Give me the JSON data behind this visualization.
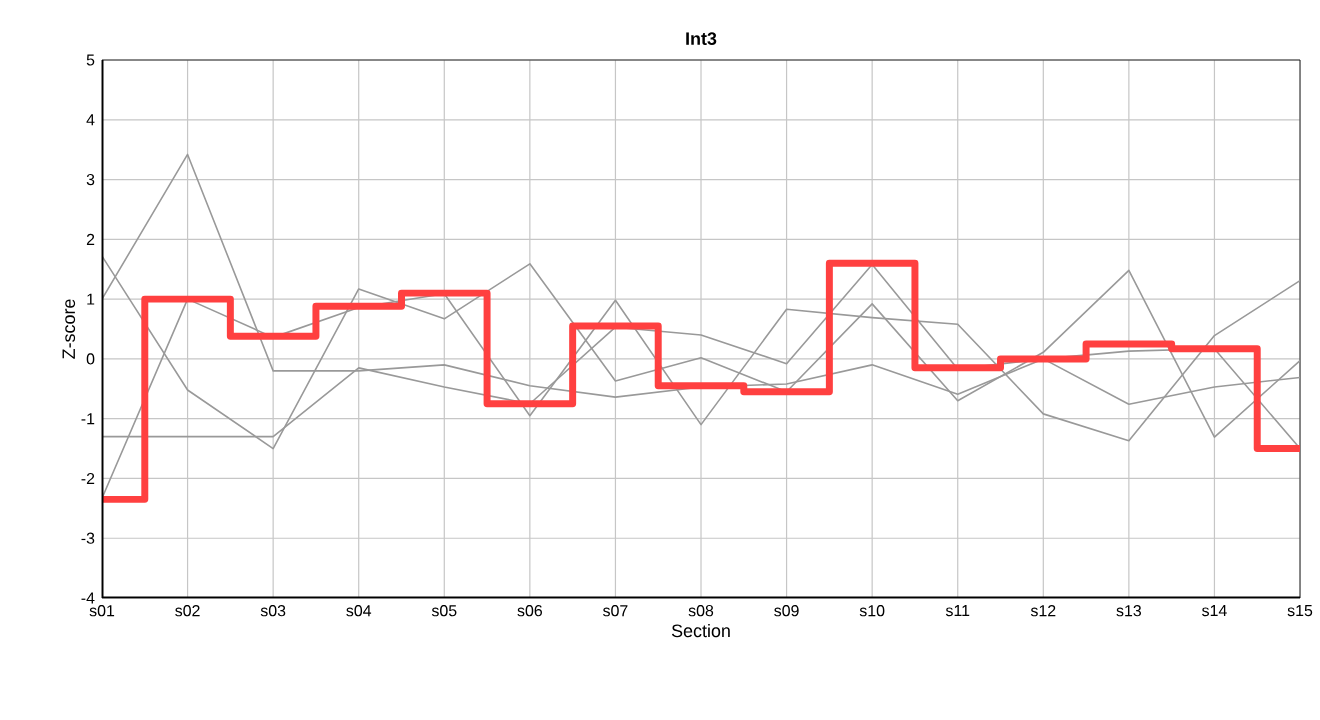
{
  "chart_data": {
    "type": "line",
    "title": "Int3",
    "xlabel": "Section",
    "ylabel": "Z-score",
    "categories": [
      "s01",
      "s02",
      "s03",
      "s04",
      "s05",
      "s06",
      "s07",
      "s08",
      "s09",
      "s10",
      "s11",
      "s12",
      "s13",
      "s14",
      "s15"
    ],
    "ylim": [
      -4,
      5
    ],
    "yticks": [
      -4,
      -3,
      -2,
      -1,
      0,
      1,
      2,
      3,
      4,
      5
    ],
    "grid": true,
    "series": [
      {
        "color": "#999999",
        "values": [
          1.0,
          3.42,
          -0.2,
          -0.2,
          -0.1,
          -0.45,
          -0.64,
          -0.47,
          -0.42,
          -0.1,
          -0.59,
          0.0,
          -0.76,
          -0.47,
          -0.31
        ]
      },
      {
        "color": "#999999",
        "values": [
          1.72,
          -0.52,
          -1.5,
          1.17,
          0.67,
          1.59,
          -0.37,
          0.02,
          -0.55,
          0.92,
          -0.7,
          0.11,
          1.48,
          -1.31,
          -0.03
        ]
      },
      {
        "color": "#999999",
        "values": [
          -2.33,
          1.0,
          0.36,
          0.86,
          1.09,
          -0.95,
          0.98,
          -1.1,
          0.83,
          0.69,
          0.58,
          -0.92,
          -1.37,
          0.39,
          1.31
        ]
      },
      {
        "color": "#999999",
        "values": [
          -1.3,
          -1.3,
          -1.3,
          -0.15,
          -0.47,
          -0.75,
          0.53,
          0.4,
          -0.08,
          1.58,
          -0.17,
          0.0,
          0.13,
          0.17,
          -1.5
        ]
      },
      {
        "type": "step",
        "color": "#ff4040",
        "values": [
          -2.35,
          1.0,
          0.38,
          0.88,
          1.1,
          -0.75,
          0.55,
          -0.45,
          -0.55,
          1.6,
          -0.15,
          0.0,
          0.25,
          0.17,
          -1.5
        ]
      }
    ]
  }
}
